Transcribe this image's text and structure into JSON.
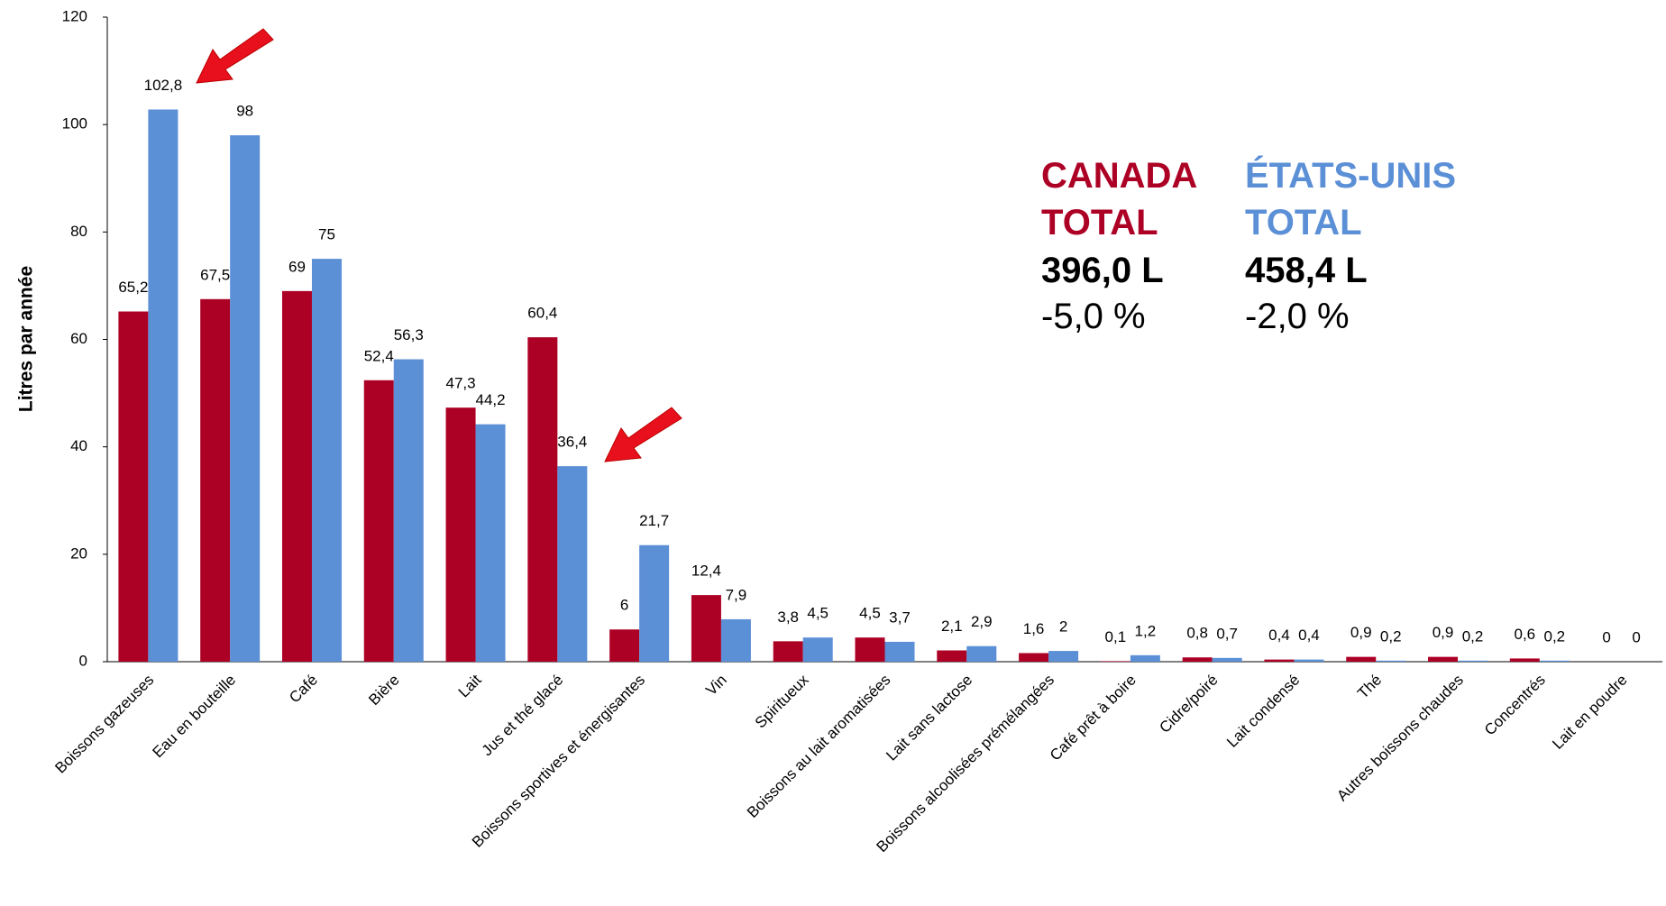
{
  "chart_data": {
    "type": "bar",
    "y_label": "Litres par année",
    "categories": [
      "Boissons gazeuses",
      "Eau en bouteille",
      "Café",
      "Bière",
      "Lait",
      "Jus et thé glacé",
      "Boissons sportives et énergisantes",
      "Vin",
      "Spiritueux",
      "Boissons au lait aromatisées",
      "Lait sans lactose",
      "Boissons alcoolisées prémélangées",
      "Café prêt à boire",
      "Cidre/poiré",
      "Lait condensé",
      "Thé",
      "Autres boissons chaudes",
      "Concentrés",
      "Lait en poudre"
    ],
    "series": [
      {
        "color": "#ad0025",
        "values": [
          65.2,
          67.5,
          69,
          52.4,
          47.3,
          60.4,
          6,
          12.4,
          3.8,
          4.5,
          2.1,
          1.6,
          0.1,
          0.8,
          0.4,
          0.9,
          0.9,
          0.6,
          0
        ],
        "value_labels": [
          "65,2",
          "67,5",
          "69",
          "52,4",
          "47,3",
          "60,4",
          "6",
          "12,4",
          "3,8",
          "4,5",
          "2,1",
          "1,6",
          "0,1",
          "0,8",
          "0,4",
          "0,9",
          "0,9",
          "0,6",
          "0"
        ]
      },
      {
        "color": "#5b8fd6",
        "values": [
          102.8,
          98,
          75,
          56.3,
          44.2,
          36.4,
          21.7,
          7.9,
          4.5,
          3.7,
          2.9,
          2,
          1.2,
          0.7,
          0.4,
          0.2,
          0.2,
          0.2,
          0
        ],
        "value_labels": [
          "102,8",
          "98",
          "75",
          "56,3",
          "44,2",
          "36,4",
          "21,7",
          "7,9",
          "4,5",
          "3,7",
          "2,9",
          "2",
          "1,2",
          "0,7",
          "0,4",
          "0,2",
          "0,2",
          "0,2",
          "0"
        ]
      }
    ],
    "ylim": [
      0,
      120
    ],
    "yticks": [
      0,
      20,
      40,
      60,
      80,
      100,
      120
    ],
    "grid": false,
    "annotations": [
      {
        "lines": [
          "CANADA",
          "TOTAL"
        ],
        "total": "396,0 L",
        "change": "-5,0 %",
        "color": "#ad0025"
      },
      {
        "lines": [
          "ÉTATS-UNIS",
          "TOTAL"
        ],
        "total": "458,4 L",
        "change": "-2,0 %",
        "color": "#5b8fd6"
      }
    ]
  }
}
